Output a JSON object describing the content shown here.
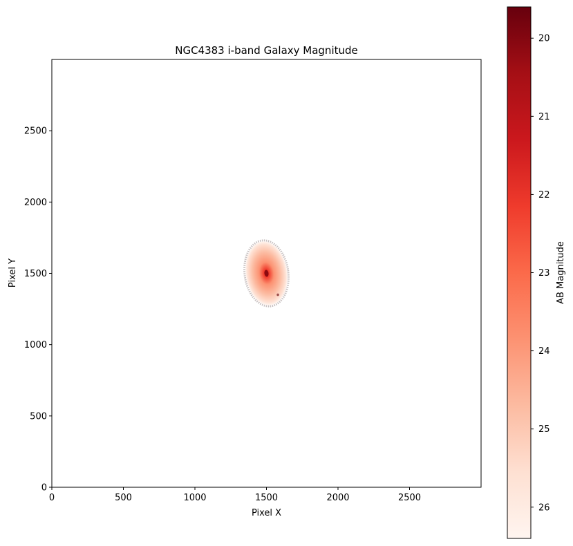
{
  "chart_data": {
    "type": "heatmap",
    "title": "NGC4383 i-band Galaxy Magnitude",
    "xlabel": "Pixel X",
    "ylabel": "Pixel Y",
    "xlim": [
      0,
      3000
    ],
    "ylim": [
      0,
      3000
    ],
    "xticks": [
      0,
      500,
      1000,
      1500,
      2000,
      2500
    ],
    "yticks": [
      0,
      500,
      1000,
      1500,
      2000,
      2500
    ],
    "colorbar": {
      "label": "AB Magnitude",
      "colormap": "Reds",
      "range": [
        26.4,
        19.6
      ],
      "ticks": [
        20,
        21,
        22,
        23,
        24,
        25,
        26
      ],
      "colors": [
        "#fff5f0",
        "#fee0d2",
        "#fcbba1",
        "#fc9272",
        "#fb6a4a",
        "#ef3b2c",
        "#cb181d",
        "#a50f15",
        "#67000d"
      ]
    },
    "galaxy": {
      "name": "NGC4383",
      "center": [
        1500,
        1500
      ],
      "semi_axes": [
        145,
        225
      ],
      "orientation": "elongated north-south",
      "peak_magnitude": 19.7,
      "edge_magnitude": 26.3,
      "companion_knot": [
        1580,
        1350
      ]
    }
  }
}
